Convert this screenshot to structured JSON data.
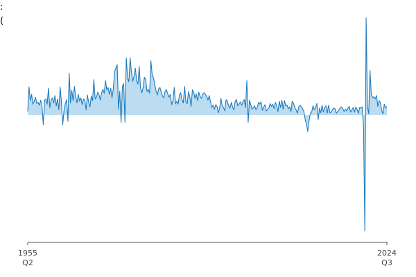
{
  "chart_data": {
    "type": "area",
    "title": ":",
    "subtitle": "(",
    "xlim": [
      "1955 Q2",
      "2024 Q3"
    ],
    "xticks": [
      {
        "value": "1955 Q2",
        "label": [
          "1955",
          "Q2"
        ]
      },
      {
        "value": "2024 Q3",
        "label": [
          "2024",
          "Q3"
        ]
      }
    ],
    "ylim": [
      -22.3,
      17.7
    ],
    "line_color": "#1f7bbd",
    "fill_color": "#bcdcf1",
    "values": [
      0.6,
      4.9,
      2.5,
      3.6,
      1.9,
      2.4,
      3.1,
      2.0,
      2.2,
      1.7,
      2.6,
      1.4,
      -1.7,
      2.6,
      2.8,
      1.9,
      4.7,
      1.3,
      2.6,
      3.0,
      2.1,
      3.4,
      1.6,
      2.8,
      0.9,
      4.9,
      2.2,
      -1.7,
      0.8,
      2.0,
      2.7,
      -1.1,
      7.3,
      2.1,
      4.3,
      2.5,
      5.0,
      3.2,
      2.1,
      3.6,
      2.4,
      3.0,
      1.8,
      2.8,
      2.6,
      0.9,
      3.5,
      2.2,
      1.4,
      3.3,
      2.5,
      6.2,
      2.8,
      3.1,
      4.0,
      3.5,
      2.6,
      3.9,
      4.5,
      3.8,
      6.0,
      4.4,
      4.8,
      3.6,
      4.7,
      3.0,
      4.6,
      7.6,
      8.2,
      8.8,
      1.0,
      4.2,
      -1.3,
      5.0,
      5.5,
      -1.3,
      10.0,
      6.5,
      5.8,
      10.0,
      7.5,
      5.9,
      6.8,
      8.2,
      6.0,
      5.4,
      8.5,
      4.7,
      3.9,
      4.8,
      6.6,
      6.2,
      4.1,
      4.5,
      3.8,
      9.5,
      7.0,
      6.5,
      5.3,
      4.2,
      3.5,
      4.6,
      4.8,
      3.9,
      3.3,
      3.0,
      4.2,
      4.4,
      3.7,
      3.1,
      3.6,
      1.8,
      2.5,
      4.8,
      2.0,
      2.4,
      1.9,
      3.5,
      3.9,
      2.7,
      2.1,
      5.0,
      2.3,
      2.0,
      4.1,
      3.2,
      1.5,
      4.4,
      4.0,
      2.9,
      3.7,
      2.5,
      4.0,
      3.2,
      2.9,
      3.7,
      3.9,
      3.6,
      3.3,
      2.6,
      3.4,
      2.3,
      1.3,
      1.7,
      1.0,
      1.8,
      1.5,
      0.4,
      1.2,
      2.9,
      1.6,
      1.3,
      0.7,
      2.7,
      2.4,
      1.5,
      1.2,
      2.2,
      1.4,
      0.9,
      2.4,
      2.7,
      1.6,
      1.9,
      2.3,
      1.7,
      2.3,
      2.7,
      1.3,
      6.0,
      -1.3,
      2.6,
      1.8,
      1.0,
      1.3,
      1.6,
      0.9,
      1.3,
      2.2,
      1.9,
      2.3,
      0.8,
      1.4,
      1.8,
      0.7,
      1.0,
      1.2,
      2.0,
      1.5,
      1.9,
      1.1,
      2.2,
      1.6,
      0.6,
      2.4,
      1.3,
      2.6,
      1.0,
      2.5,
      1.6,
      1.7,
      1.1,
      1.4,
      0.6,
      2.4,
      2.0,
      1.3,
      0.9,
      0.3,
      1.4,
      1.7,
      1.5,
      1.1,
      0.6,
      -0.8,
      -1.7,
      -2.9,
      -1.0,
      0.3,
      0.5,
      1.6,
      0.9,
      1.3,
      2.0,
      -0.8,
      1.2,
      0.4,
      1.7,
      0.5,
      1.3,
      1.6,
      0.3,
      1.7,
      0.4,
      0.5,
      0.9,
      1.2,
      1.1,
      0.3,
      0.6,
      0.8,
      1.3,
      1.4,
      1.1,
      0.6,
      1.0,
      0.7,
      1.2,
      1.5,
      0.5,
      0.9,
      1.3,
      0.5,
      1.4,
      1.0,
      0.3,
      1.3,
      1.2,
      1.4,
      -2.3,
      -20.3,
      17.0,
      1.5,
      0.2,
      7.8,
      3.5,
      3.0,
      3.2,
      2.8,
      3.4,
      1.5,
      2.5,
      2.2,
      0.8,
      0.2,
      1.9,
      1.2,
      1.5
    ]
  }
}
